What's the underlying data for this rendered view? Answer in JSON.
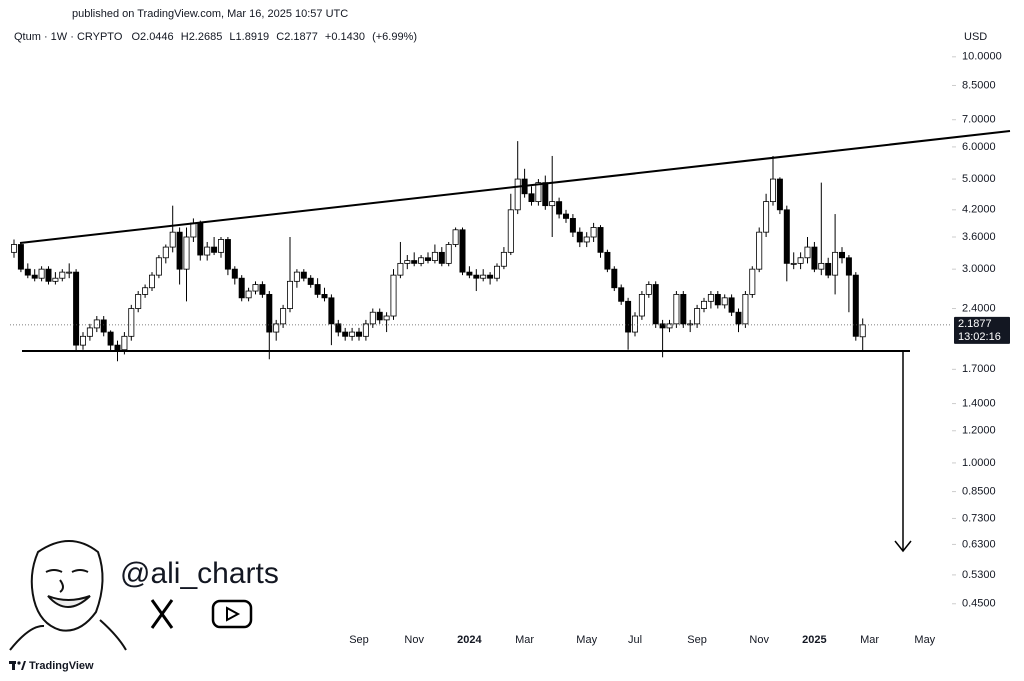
{
  "published": "published on TradingView.com, Mar 16, 2025 10:57 UTC",
  "watermark": {
    "handle": "@ali_charts",
    "brand": "TradingView"
  },
  "chart_data": {
    "type": "candlestick",
    "title": "Qtum · 1W · CRYPTO",
    "ohlc_labels": [
      "O",
      "H",
      "L",
      "C"
    ],
    "change": "+0.1430",
    "change_pct": "(+6.99%)",
    "currency": "USD",
    "countdown": "13:02:16",
    "log_scale": true,
    "colors": {
      "up": "#ffffff",
      "down": "#000000",
      "wick": "#000000"
    },
    "ylim": [
      0.39,
      11
    ],
    "yticks": [
      {
        "value": 10,
        "label": "10.0000"
      },
      {
        "value": 8.5,
        "label": "8.5000"
      },
      {
        "value": 7,
        "label": "7.0000"
      },
      {
        "value": 6,
        "label": "6.0000"
      },
      {
        "value": 5,
        "label": "5.0000"
      },
      {
        "value": 4.2,
        "label": "4.2000"
      },
      {
        "value": 3.6,
        "label": "3.6000"
      },
      {
        "value": 3,
        "label": "3.0000"
      },
      {
        "value": 2.4,
        "label": "2.4000"
      },
      {
        "value": 1.7,
        "label": "1.7000"
      },
      {
        "value": 1.4,
        "label": "1.4000"
      },
      {
        "value": 1.2,
        "label": "1.2000"
      },
      {
        "value": 1,
        "label": "1.0000"
      },
      {
        "value": 0.85,
        "label": "0.8500"
      },
      {
        "value": 0.73,
        "label": "0.7300"
      },
      {
        "value": 0.63,
        "label": "0.6300"
      },
      {
        "value": 0.53,
        "label": "0.5300"
      },
      {
        "value": 0.45,
        "label": "0.4500"
      }
    ],
    "categories": [
      null,
      null,
      null,
      null,
      null,
      null,
      null,
      null,
      null,
      null,
      null,
      null,
      null,
      null,
      null,
      null,
      null,
      null,
      null,
      null,
      null,
      null,
      null,
      null,
      null,
      null,
      null,
      null,
      null,
      null,
      null,
      null,
      null,
      null,
      null,
      null,
      null,
      null,
      null,
      null,
      null,
      null,
      null,
      null,
      null,
      null,
      null,
      null,
      null,
      null,
      "Sep",
      null,
      null,
      null,
      null,
      null,
      null,
      null,
      "Nov",
      null,
      null,
      null,
      null,
      null,
      null,
      null,
      "2024",
      null,
      null,
      null,
      null,
      null,
      null,
      null,
      "Mar",
      null,
      null,
      null,
      null,
      null,
      null,
      null,
      null,
      "May",
      null,
      null,
      null,
      null,
      null,
      null,
      "Jul",
      null,
      null,
      null,
      null,
      null,
      null,
      null,
      null,
      "Sep",
      null,
      null,
      null,
      null,
      null,
      null,
      null,
      null,
      "Nov",
      null,
      null,
      null,
      null,
      null,
      null,
      null,
      "2025",
      null,
      null,
      null,
      null,
      null,
      null,
      null,
      "Mar",
      null,
      null,
      null,
      null,
      null,
      null,
      null,
      "May",
      null,
      null,
      null
    ],
    "candles": [
      [
        3.3,
        3.55,
        3.2,
        3.45
      ],
      [
        3.45,
        3.5,
        2.95,
        3.0
      ],
      [
        3.0,
        3.1,
        2.85,
        2.9
      ],
      [
        2.9,
        3.0,
        2.8,
        2.85
      ],
      [
        2.85,
        3.05,
        2.8,
        3.0
      ],
      [
        3.0,
        3.05,
        2.75,
        2.8
      ],
      [
        2.8,
        2.95,
        2.75,
        2.85
      ],
      [
        2.85,
        3.0,
        2.8,
        2.95
      ],
      [
        2.95,
        3.1,
        2.85,
        2.95
      ],
      [
        2.95,
        3.0,
        1.88,
        1.95
      ],
      [
        1.95,
        2.1,
        1.9,
        2.05
      ],
      [
        2.05,
        2.2,
        2.0,
        2.15
      ],
      [
        2.15,
        2.3,
        2.1,
        2.25
      ],
      [
        2.25,
        2.3,
        2.05,
        2.1
      ],
      [
        2.1,
        2.12,
        1.88,
        1.95
      ],
      [
        1.95,
        2.0,
        1.78,
        1.9
      ],
      [
        1.9,
        2.1,
        1.85,
        2.05
      ],
      [
        2.05,
        2.45,
        2.0,
        2.4
      ],
      [
        2.4,
        2.65,
        2.35,
        2.6
      ],
      [
        2.6,
        2.75,
        2.55,
        2.7
      ],
      [
        2.7,
        2.95,
        2.65,
        2.9
      ],
      [
        2.9,
        3.25,
        2.85,
        3.2
      ],
      [
        3.2,
        3.45,
        3.1,
        3.4
      ],
      [
        3.4,
        4.3,
        3.3,
        3.7
      ],
      [
        3.7,
        3.8,
        2.75,
        3.0
      ],
      [
        3.0,
        3.8,
        2.5,
        3.6
      ],
      [
        3.6,
        4.0,
        3.5,
        3.9
      ],
      [
        3.9,
        3.95,
        3.15,
        3.25
      ],
      [
        3.25,
        3.5,
        3.15,
        3.4
      ],
      [
        3.4,
        3.6,
        3.25,
        3.3
      ],
      [
        3.3,
        3.6,
        3.2,
        3.55
      ],
      [
        3.55,
        3.6,
        2.9,
        3.0
      ],
      [
        3.0,
        3.05,
        2.75,
        2.85
      ],
      [
        2.85,
        2.9,
        2.5,
        2.55
      ],
      [
        2.55,
        2.7,
        2.5,
        2.65
      ],
      [
        2.65,
        2.8,
        2.6,
        2.75
      ],
      [
        2.75,
        2.8,
        2.55,
        2.6
      ],
      [
        2.6,
        2.65,
        1.8,
        2.1
      ],
      [
        2.1,
        2.25,
        2.0,
        2.2
      ],
      [
        2.2,
        2.45,
        2.15,
        2.4
      ],
      [
        2.4,
        3.6,
        2.35,
        2.8
      ],
      [
        2.8,
        3.0,
        2.7,
        2.95
      ],
      [
        2.95,
        3.0,
        2.8,
        2.85
      ],
      [
        2.85,
        2.9,
        2.7,
        2.75
      ],
      [
        2.75,
        2.85,
        2.55,
        2.6
      ],
      [
        2.6,
        2.7,
        2.5,
        2.55
      ],
      [
        2.55,
        2.6,
        1.95,
        2.2
      ],
      [
        2.2,
        2.25,
        2.05,
        2.1
      ],
      [
        2.1,
        2.15,
        2.0,
        2.05
      ],
      [
        2.05,
        2.15,
        2.0,
        2.1
      ],
      [
        2.1,
        2.15,
        2.0,
        2.05
      ],
      [
        2.05,
        2.25,
        2.0,
        2.2
      ],
      [
        2.2,
        2.4,
        2.15,
        2.35
      ],
      [
        2.35,
        2.4,
        2.2,
        2.25
      ],
      [
        2.25,
        2.35,
        2.1,
        2.3
      ],
      [
        2.3,
        3.0,
        2.25,
        2.9
      ],
      [
        2.9,
        3.5,
        2.85,
        3.1
      ],
      [
        3.1,
        3.25,
        3.0,
        3.15
      ],
      [
        3.15,
        3.3,
        3.05,
        3.1
      ],
      [
        3.1,
        3.25,
        3.05,
        3.2
      ],
      [
        3.2,
        3.3,
        3.1,
        3.15
      ],
      [
        3.15,
        3.45,
        3.1,
        3.3
      ],
      [
        3.3,
        3.4,
        3.05,
        3.1
      ],
      [
        3.1,
        3.5,
        3.05,
        3.45
      ],
      [
        3.45,
        3.8,
        3.4,
        3.75
      ],
      [
        3.75,
        3.8,
        2.9,
        2.95
      ],
      [
        2.95,
        3.05,
        2.85,
        2.9
      ],
      [
        2.9,
        3.0,
        2.65,
        2.85
      ],
      [
        2.85,
        3.0,
        2.8,
        2.9
      ],
      [
        2.9,
        2.95,
        2.75,
        2.85
      ],
      [
        2.85,
        3.1,
        2.8,
        3.05
      ],
      [
        3.05,
        3.4,
        3.0,
        3.3
      ],
      [
        3.3,
        4.6,
        3.25,
        4.2
      ],
      [
        4.2,
        6.2,
        4.1,
        5.0
      ],
      [
        5.0,
        5.3,
        4.5,
        4.6
      ],
      [
        4.6,
        4.8,
        4.3,
        4.4
      ],
      [
        4.4,
        5.0,
        4.3,
        4.9
      ],
      [
        4.9,
        5.1,
        4.2,
        4.3
      ],
      [
        4.3,
        5.7,
        3.6,
        4.4
      ],
      [
        4.4,
        4.5,
        4.0,
        4.1
      ],
      [
        4.1,
        4.2,
        3.9,
        4.0
      ],
      [
        4.0,
        4.1,
        3.6,
        3.7
      ],
      [
        3.7,
        3.8,
        3.4,
        3.5
      ],
      [
        3.5,
        3.7,
        3.4,
        3.6
      ],
      [
        3.6,
        3.9,
        3.5,
        3.8
      ],
      [
        3.8,
        3.85,
        3.2,
        3.3
      ],
      [
        3.3,
        3.35,
        2.95,
        3.0
      ],
      [
        3.0,
        3.05,
        2.65,
        2.7
      ],
      [
        2.7,
        2.75,
        2.45,
        2.5
      ],
      [
        2.5,
        2.55,
        1.9,
        2.1
      ],
      [
        2.1,
        2.35,
        2.05,
        2.3
      ],
      [
        2.3,
        2.65,
        2.25,
        2.6
      ],
      [
        2.6,
        2.8,
        2.55,
        2.75
      ],
      [
        2.75,
        2.8,
        2.15,
        2.2
      ],
      [
        2.2,
        2.25,
        1.82,
        2.15
      ],
      [
        2.15,
        2.25,
        2.1,
        2.2
      ],
      [
        2.2,
        2.65,
        2.15,
        2.6
      ],
      [
        2.6,
        2.65,
        2.15,
        2.2
      ],
      [
        2.2,
        2.25,
        2.1,
        2.2
      ],
      [
        2.2,
        2.45,
        2.15,
        2.4
      ],
      [
        2.4,
        2.55,
        2.35,
        2.5
      ],
      [
        2.5,
        2.65,
        2.4,
        2.6
      ],
      [
        2.6,
        2.65,
        2.4,
        2.45
      ],
      [
        2.45,
        2.6,
        2.4,
        2.55
      ],
      [
        2.55,
        2.6,
        2.3,
        2.35
      ],
      [
        2.35,
        2.4,
        2.1,
        2.2
      ],
      [
        2.2,
        2.65,
        2.15,
        2.6
      ],
      [
        2.6,
        3.05,
        2.55,
        3.0
      ],
      [
        3.0,
        3.8,
        2.95,
        3.7
      ],
      [
        3.7,
        4.6,
        3.6,
        4.4
      ],
      [
        4.4,
        5.7,
        4.3,
        5.0
      ],
      [
        5.0,
        5.05,
        4.1,
        4.2
      ],
      [
        4.2,
        4.3,
        2.8,
        3.1
      ],
      [
        3.1,
        3.3,
        3.0,
        3.1
      ],
      [
        3.1,
        3.3,
        3.0,
        3.2
      ],
      [
        3.2,
        3.6,
        3.1,
        3.4
      ],
      [
        3.4,
        3.5,
        2.95,
        3.0
      ],
      [
        3.0,
        4.9,
        2.9,
        3.1
      ],
      [
        3.1,
        3.2,
        2.85,
        2.9
      ],
      [
        2.9,
        4.1,
        2.6,
        3.3
      ],
      [
        3.3,
        3.4,
        3.1,
        3.2
      ],
      [
        3.2,
        3.25,
        2.35,
        2.9
      ],
      [
        2.9,
        2.95,
        2.0,
        2.05
      ],
      [
        2.0446,
        2.2685,
        1.8919,
        2.1877
      ],
      null,
      null,
      null,
      null,
      null,
      null,
      null,
      null,
      null,
      null,
      null,
      null
    ]
  }
}
